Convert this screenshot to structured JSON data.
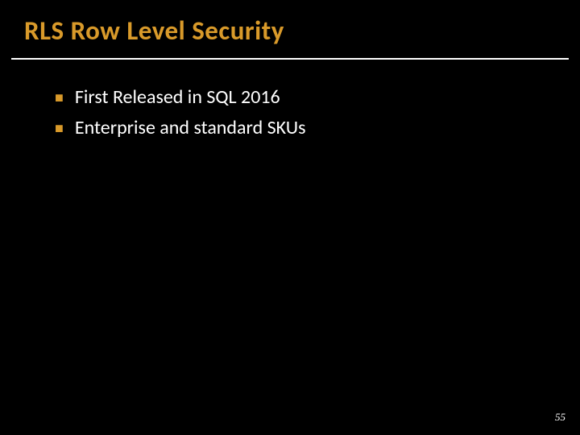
{
  "slide": {
    "title": "RLS Row Level Security",
    "title_color": "#d99a2a",
    "title_fontsize": 33,
    "title_weight": "bold",
    "background_color": "#000000",
    "underline_color": "#ffffff",
    "bullets": [
      {
        "marker": "■",
        "text": "First Released in SQL 2016"
      },
      {
        "marker": "■",
        "text": "Enterprise and standard SKUs"
      }
    ],
    "bullet_marker_color": "#d99a2a",
    "bullet_text_color": "#ffffff",
    "bullet_fontsize": 24,
    "page_number": "55",
    "page_number_color": "#ffffff",
    "page_number_fontsize": 13
  }
}
